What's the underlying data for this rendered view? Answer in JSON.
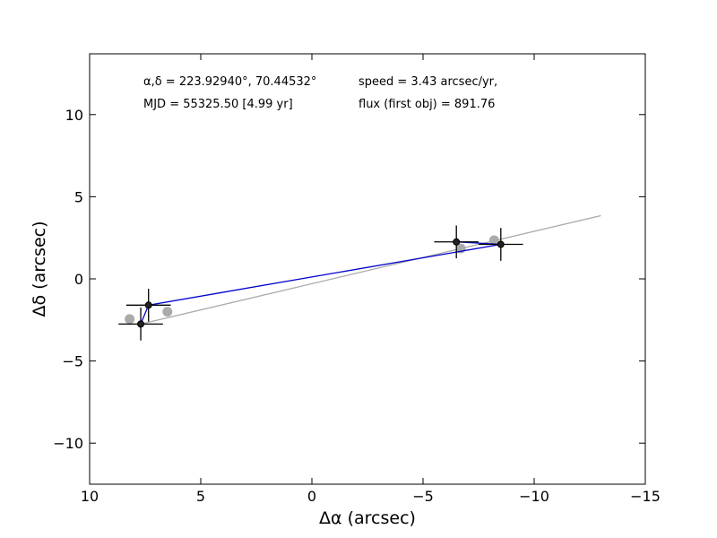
{
  "chart_data": {
    "type": "scatter",
    "title": "",
    "xlabel": "Δα (arcsec)",
    "ylabel": "Δδ (arcsec)",
    "xlim": [
      10,
      -15
    ],
    "ylim": [
      -12.5,
      13.7
    ],
    "x_reversed": true,
    "grid": false,
    "legend": "none",
    "xticks": [
      10,
      5,
      0,
      -5,
      -10,
      -15
    ],
    "xtick_labels": [
      "10",
      "5",
      "0",
      "−5",
      "−10",
      "−15"
    ],
    "yticks": [
      -10,
      -5,
      0,
      5,
      10
    ],
    "ytick_labels": [
      "−10",
      "−5",
      "0",
      "5",
      "10"
    ],
    "annotations": {
      "radec": "α,δ = 223.92940°, 70.44532°",
      "mjd": "MJD = 55325.50 [4.99 yr]",
      "speed": "speed = 3.43 arcsec/yr,",
      "flux": "flux (first obj) = 891.76"
    },
    "series": [
      {
        "role": "measured",
        "color": "#222222",
        "points": [
          {
            "x": 7.35,
            "y": -1.6,
            "xerr": 1.0,
            "yerr": 1.0
          },
          {
            "x": 7.7,
            "y": -2.75,
            "xerr": 1.0,
            "yerr": 1.0
          },
          {
            "x": -6.5,
            "y": 2.25,
            "xerr": 1.0,
            "yerr": 1.0
          },
          {
            "x": -8.5,
            "y": 2.1,
            "xerr": 1.0,
            "yerr": 1.0
          }
        ]
      },
      {
        "role": "model",
        "color": "#aaaaaa",
        "points": [
          {
            "x": 8.2,
            "y": -2.45
          },
          {
            "x": 6.5,
            "y": -2.0
          },
          {
            "x": -6.7,
            "y": 1.85
          },
          {
            "x": -8.2,
            "y": 2.35
          }
        ]
      },
      {
        "role": "connecting-path",
        "color": "#0000cc",
        "points": [
          {
            "x": 7.7,
            "y": -2.75
          },
          {
            "x": 7.35,
            "y": -1.6
          },
          {
            "x": -8.5,
            "y": 2.1
          },
          {
            "x": -6.5,
            "y": 2.25
          },
          {
            "x": -8.5,
            "y": 2.1
          }
        ]
      },
      {
        "role": "trend-line",
        "color": "#aaaaaa",
        "points": [
          {
            "x": 7.7,
            "y": -2.75
          },
          {
            "x": -13.0,
            "y": 3.85
          }
        ]
      }
    ]
  }
}
